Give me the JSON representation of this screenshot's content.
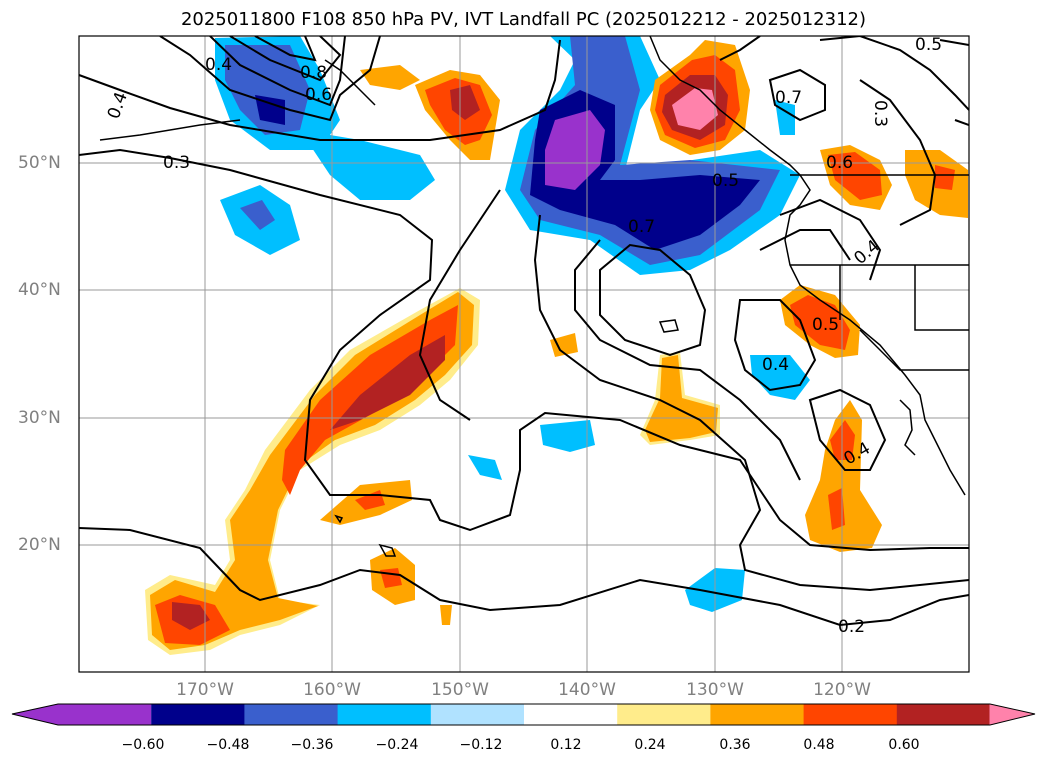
{
  "title": "2025011800 F108 850 hPa PV, IVT Landfall PC (2025012212 - 2025012312)",
  "map": {
    "lon_labels": [
      "170°W",
      "160°W",
      "150°W",
      "140°W",
      "130°W",
      "120°W"
    ],
    "lat_labels": [
      "50°N",
      "40°N",
      "30°N",
      "20°N"
    ],
    "contour_labels": [
      "0.4",
      "0.8",
      "0.6",
      "0.4",
      "0.3",
      "0.5",
      "0.7",
      "0.3",
      "0.6",
      "0.7",
      "0.5",
      "0.4",
      "0.5",
      "0.4",
      "0.4",
      "0.2"
    ]
  },
  "colorbar": {
    "ticks": [
      "−0.60",
      "−0.48",
      "−0.36",
      "−0.24",
      "−0.12",
      "0.12",
      "0.24",
      "0.36",
      "0.48",
      "0.60"
    ],
    "colors": [
      "#9932cc",
      "#00008b",
      "#3a5fcd",
      "#00bfff",
      "#b0e2ff",
      "#ffffff",
      "#ffec8b",
      "#ffa500",
      "#ff4500",
      "#b22222",
      "#ff82ab"
    ]
  }
}
